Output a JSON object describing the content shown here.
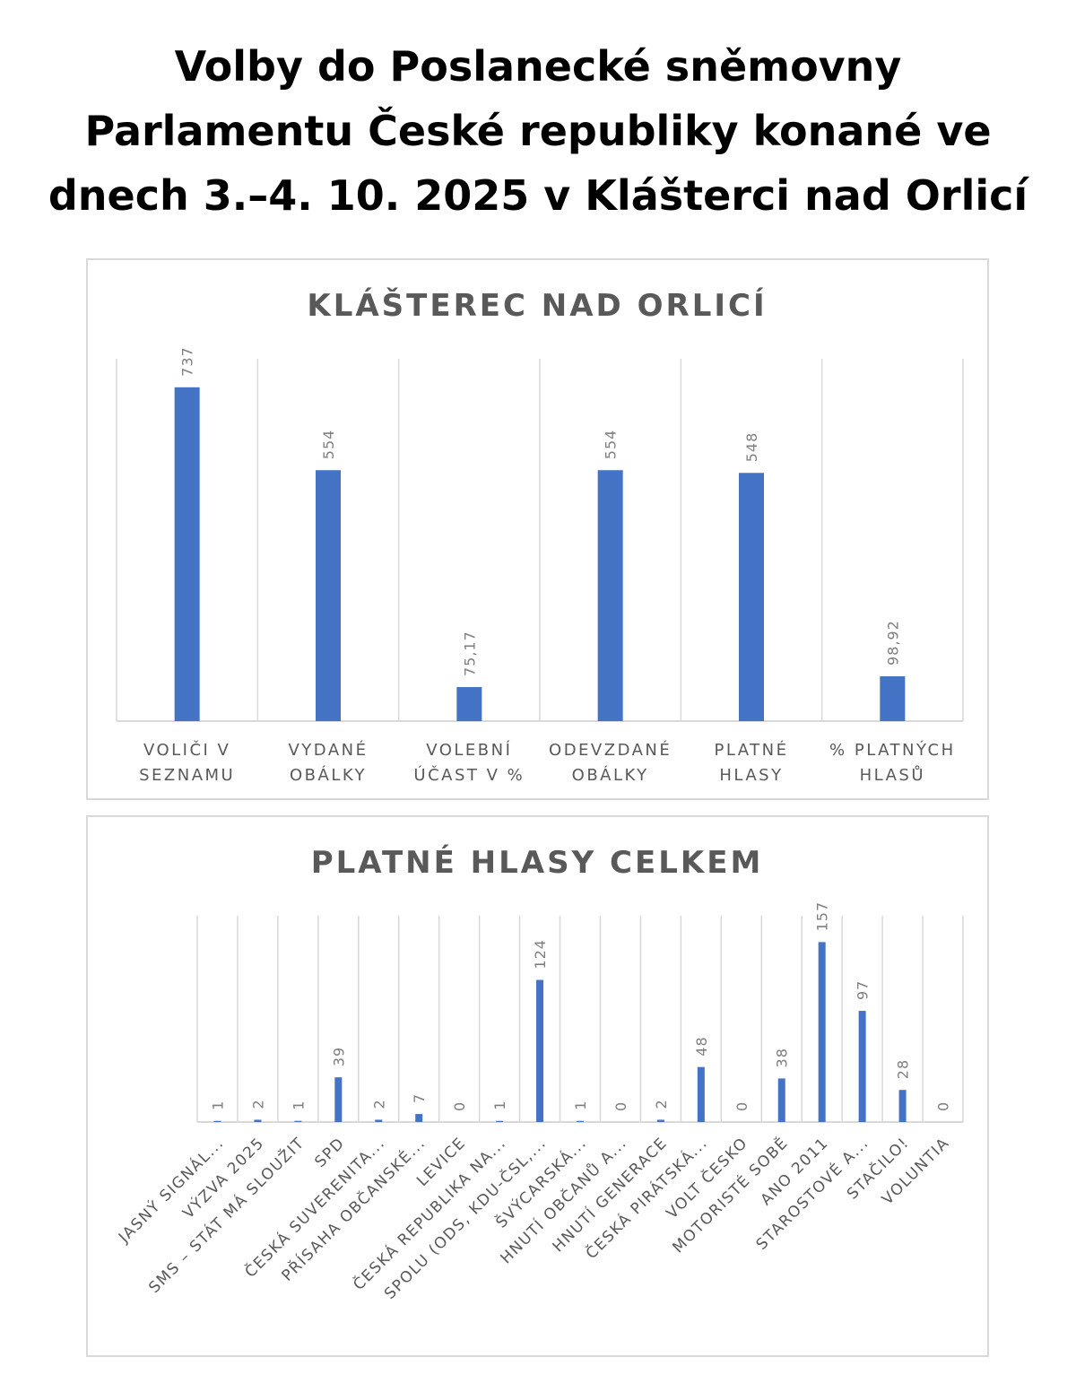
{
  "page": {
    "title": "Volby do Poslanecké sněmovny Parlamentu České republiky konané ve dnech 3.–4. 10. 2025 v Klášterci nad Orlicí",
    "title_lines": [
      "Volby do Poslanecké sněmovny",
      "Parlamentu České republiky konané ve",
      "dnech 3.–4. 10. 2025 v Klášterci nad Orlicí"
    ]
  },
  "colors": {
    "bar": "#4472c4",
    "grid": "#d9d9d9",
    "text": "#595959",
    "frame": "#d9d9d9"
  },
  "chart_data": [
    {
      "type": "bar",
      "title": "KLÁŠTEREC NAD ORLICÍ",
      "categories": [
        "VOLIČI V SEZNAMU",
        "VYDANÉ OBÁLKY",
        "VOLEBNÍ ÚČAST V %",
        "ODEVZDANÉ OBÁLKY",
        "PLATNÉ HLASY",
        "% PLATNÝCH HLASŮ"
      ],
      "category_lines": [
        [
          "VOLIČI V",
          "SEZNAMU"
        ],
        [
          "VYDANÉ",
          "OBÁLKY"
        ],
        [
          "VOLEBNÍ",
          "ÚČAST V %"
        ],
        [
          "ODEVZDANÉ",
          "OBÁLKY"
        ],
        [
          "PLATNÉ",
          "HLASY"
        ],
        [
          "% PLATNÝCH",
          "HLASŮ"
        ]
      ],
      "values": [
        737,
        554,
        75.17,
        554,
        548,
        98.92
      ],
      "value_labels": [
        "737",
        "554",
        "75,17",
        "554",
        "548",
        "98,92"
      ],
      "ylim": [
        0,
        800
      ],
      "grid": "vertical",
      "xlabel": "",
      "ylabel": ""
    },
    {
      "type": "bar",
      "title": "PLATNÉ HLASY CELKEM",
      "categories": [
        "JASNÝ SIGNÁL...",
        "VÝZVA 2025",
        "SMS – STÁT MÁ SLOUŽIT",
        "SPD",
        "ČESKÁ SUVERENITA...",
        "PŘÍSAHA OBČANSKÉ...",
        "LEVICE",
        "ČESKÁ REPUBLIKA NA...",
        "SPOLU (ODS, KDU-ČSL,...",
        "ŠVÝCARSKÁ...",
        "HNUTÍ OBČANŮ A...",
        "HNUTÍ GENERACE",
        "ČESKÁ PIRÁTSKÁ...",
        "VOLT ČESKO",
        "MOTORISTÉ SOBĚ",
        "ANO 2011",
        "STAROSTOVÉ A...",
        "STAČILO!",
        "VOLUNTIA"
      ],
      "values": [
        1,
        2,
        1,
        39,
        2,
        7,
        0,
        1,
        124,
        1,
        0,
        2,
        48,
        0,
        38,
        157,
        97,
        28,
        0
      ],
      "value_labels": [
        "1",
        "2",
        "1",
        "39",
        "2",
        "7",
        "0",
        "1",
        "124",
        "1",
        "0",
        "2",
        "48",
        "0",
        "38",
        "157",
        "97",
        "28",
        "0"
      ],
      "ylim": [
        0,
        180
      ],
      "grid": "vertical",
      "xlabel": "",
      "ylabel": ""
    }
  ]
}
